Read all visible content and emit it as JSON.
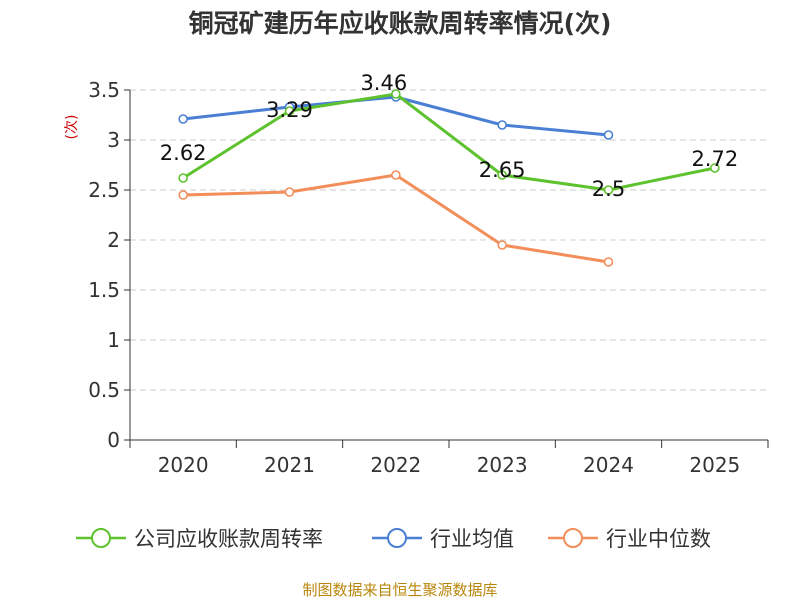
{
  "chart_data": {
    "type": "line",
    "title": "铜冠矿建历年应收账款周转率情况(次)",
    "ylabel": "(次)",
    "xlabel": "",
    "categories": [
      "2020",
      "2021",
      "2022",
      "2023",
      "2024",
      "2025"
    ],
    "ylim": [
      0,
      3.5
    ],
    "yticks": [
      0,
      0.5,
      1,
      1.5,
      2,
      2.5,
      3,
      3.5
    ],
    "ytick_labels": [
      "0",
      "0.5",
      "1",
      "1.5",
      "2",
      "2.5",
      "3",
      "3.5"
    ],
    "grid": true,
    "legend_position": "bottom",
    "series": [
      {
        "name": "公司应收账款周转率",
        "color": "#5ec22e",
        "values": [
          2.62,
          3.29,
          3.46,
          2.65,
          2.5,
          2.72
        ],
        "labels": [
          "2.62",
          "3.29",
          "3.46",
          "2.65",
          "2.5",
          "2.72"
        ]
      },
      {
        "name": "行业均值",
        "color": "#4a7fd4",
        "values": [
          3.21,
          3.33,
          3.43,
          3.15,
          3.05,
          null
        ]
      },
      {
        "name": "行业中位数",
        "color": "#f28e5a",
        "values": [
          2.45,
          2.48,
          2.65,
          1.95,
          1.78,
          null
        ]
      }
    ]
  },
  "source": "制图数据来自恒生聚源数据库"
}
